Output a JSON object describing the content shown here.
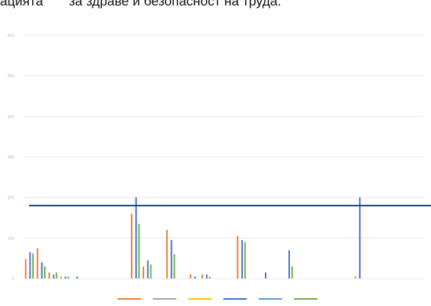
{
  "header": {
    "left_text": "ацията",
    "right_text": "за здраве и безопасност на труда."
  },
  "chart_data": {
    "type": "bar",
    "title": "",
    "xlabel": "",
    "ylabel": "",
    "ylim": [
      0,
      600
    ],
    "yticks": [
      0,
      100,
      200,
      300,
      400,
      500,
      600
    ],
    "grid": true,
    "legend_position": "bottom",
    "categories": [
      "",
      "",
      "",
      "",
      "",
      "",
      "",
      "",
      "",
      "",
      "",
      "",
      "",
      "",
      "",
      "",
      "",
      "",
      "",
      "",
      "",
      "",
      "",
      "",
      "",
      "",
      "",
      "",
      "",
      "",
      "",
      "",
      "",
      ""
    ],
    "series": [
      {
        "values": [
          48,
          75,
          15,
          5,
          0,
          0,
          0,
          0,
          0,
          160,
          30,
          0,
          120,
          0,
          10,
          10,
          0,
          0,
          105,
          0,
          0,
          0,
          0,
          0,
          0,
          0,
          0,
          0,
          5,
          0,
          0,
          0,
          0,
          0
        ]
      },
      {
        "values": [
          0,
          0,
          0,
          0,
          0,
          0,
          0,
          0,
          0,
          0,
          0,
          0,
          0,
          0,
          0,
          0,
          0,
          0,
          0,
          0,
          0,
          0,
          0,
          0,
          0,
          0,
          0,
          0,
          0,
          0,
          0,
          0,
          0,
          0
        ]
      },
      {
        "values": [
          0,
          0,
          0,
          0,
          0,
          0,
          0,
          0,
          0,
          0,
          0,
          0,
          0,
          0,
          0,
          0,
          0,
          0,
          0,
          0,
          0,
          0,
          0,
          0,
          0,
          0,
          0,
          0,
          0,
          0,
          0,
          0,
          0,
          0
        ]
      },
      {
        "values": [
          65,
          40,
          10,
          5,
          5,
          0,
          0,
          0,
          0,
          200,
          45,
          0,
          95,
          0,
          5,
          10,
          0,
          0,
          95,
          0,
          15,
          0,
          70,
          0,
          0,
          0,
          0,
          0,
          200,
          0,
          0,
          0,
          0,
          0
        ]
      },
      {
        "values": [
          0,
          0,
          0,
          0,
          0,
          0,
          0,
          0,
          0,
          0,
          0,
          0,
          0,
          0,
          0,
          0,
          0,
          0,
          0,
          0,
          0,
          0,
          0,
          0,
          0,
          0,
          0,
          0,
          0,
          0,
          0,
          0,
          0,
          0
        ]
      },
      {
        "values": [
          62,
          30,
          15,
          5,
          0,
          0,
          0,
          0,
          0,
          135,
          35,
          0,
          60,
          0,
          0,
          5,
          0,
          0,
          90,
          0,
          0,
          0,
          30,
          0,
          0,
          0,
          0,
          0,
          0,
          0,
          0,
          0,
          0,
          0
        ]
      }
    ],
    "colors": [
      "#ed7d31",
      "#a5a5a5",
      "#ffc000",
      "#4472c4",
      "#5b9bd5",
      "#70ad47"
    ],
    "reference_line": {
      "value": 180,
      "color": "#1f4e79"
    }
  }
}
